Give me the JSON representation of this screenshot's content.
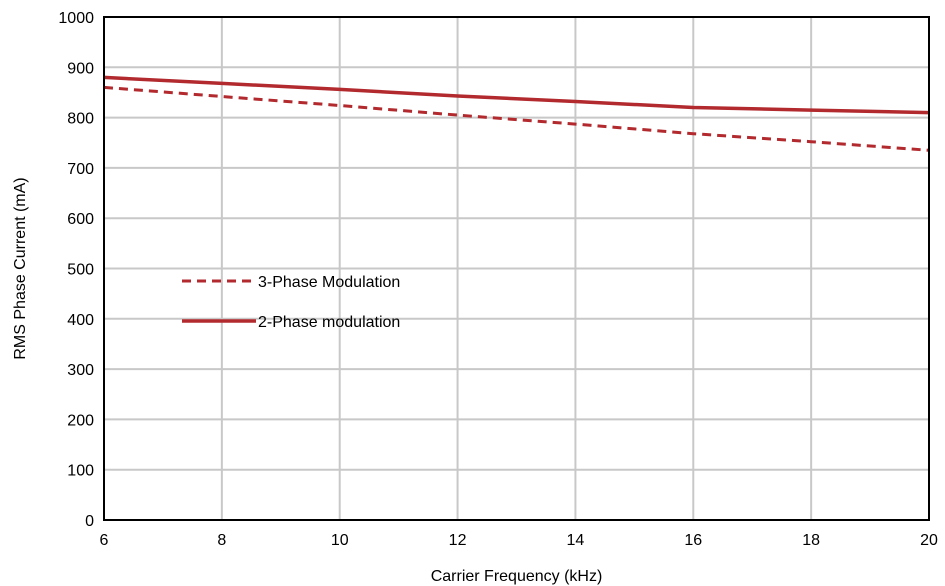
{
  "chart_data": {
    "type": "line",
    "title": "",
    "xlabel": "Carrier Frequency (kHz)",
    "ylabel": "RMS Phase Current (mA)",
    "xlim": [
      6,
      20
    ],
    "ylim": [
      0,
      1000
    ],
    "xticks": [
      "6",
      "8",
      "10",
      "12",
      "14",
      "16",
      "18",
      "20"
    ],
    "yticks": [
      "0",
      "100",
      "200",
      "300",
      "400",
      "500",
      "600",
      "700",
      "800",
      "900",
      "1000"
    ],
    "grid": true,
    "legend_position": "center-left",
    "series": [
      {
        "name": "3-Phase Modulation",
        "style": "dashed",
        "color": "#b22a2e",
        "x": [
          6,
          8,
          10,
          12,
          14,
          16,
          18,
          20
        ],
        "y": [
          860,
          842,
          824,
          805,
          787,
          768,
          752,
          735
        ]
      },
      {
        "name": "2-Phase modulation",
        "style": "solid",
        "color": "#b22a2e",
        "x": [
          6,
          8,
          10,
          12,
          14,
          16,
          18,
          20
        ],
        "y": [
          880,
          868,
          856,
          843,
          832,
          820,
          815,
          810
        ]
      }
    ]
  }
}
